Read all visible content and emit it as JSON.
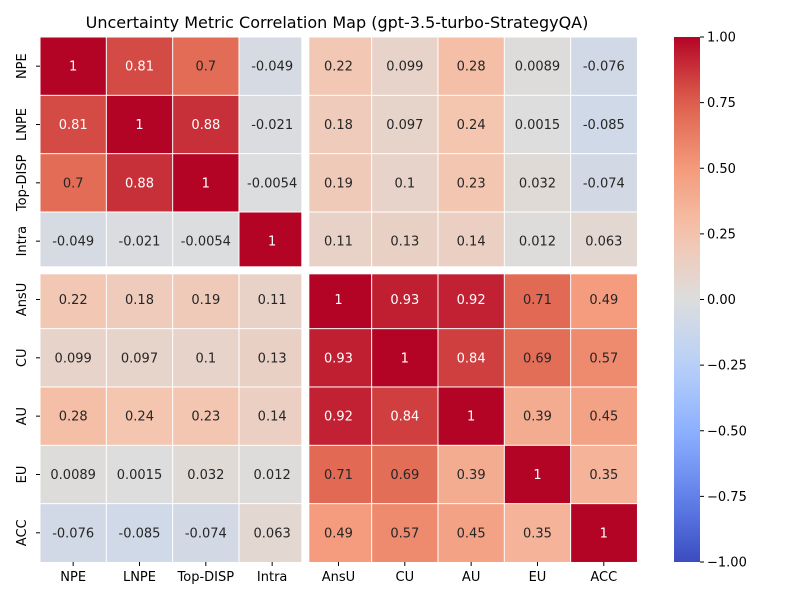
{
  "chart_data": {
    "type": "heatmap",
    "title": "Uncertainty Metric Correlation Map (gpt-3.5-turbo-StrategyQA)",
    "xlabel": "",
    "ylabel": "",
    "labels": [
      "NPE",
      "LNPE",
      "Top-DISP",
      "Intra",
      "AnsU",
      "CU",
      "AU",
      "EU",
      "ACC"
    ],
    "matrix": [
      [
        1,
        0.81,
        0.7,
        -0.049,
        0.22,
        0.099,
        0.28,
        0.0089,
        -0.076
      ],
      [
        0.81,
        1,
        0.88,
        -0.021,
        0.18,
        0.097,
        0.24,
        0.0015,
        -0.085
      ],
      [
        0.7,
        0.88,
        1,
        -0.0054,
        0.19,
        0.1,
        0.23,
        0.032,
        -0.074
      ],
      [
        -0.049,
        -0.021,
        -0.0054,
        1,
        0.11,
        0.13,
        0.14,
        0.012,
        0.063
      ],
      [
        0.22,
        0.18,
        0.19,
        0.11,
        1,
        0.93,
        0.92,
        0.71,
        0.49
      ],
      [
        0.099,
        0.097,
        0.1,
        0.13,
        0.93,
        1,
        0.84,
        0.69,
        0.57
      ],
      [
        0.28,
        0.24,
        0.23,
        0.14,
        0.92,
        0.84,
        1,
        0.39,
        0.45
      ],
      [
        0.0089,
        0.0015,
        0.032,
        0.012,
        0.71,
        0.69,
        0.39,
        1,
        0.35
      ],
      [
        -0.076,
        -0.085,
        -0.074,
        0.063,
        0.49,
        0.57,
        0.45,
        0.35,
        1
      ]
    ],
    "annotations": [
      [
        "1",
        "0.81",
        "0.7",
        "-0.049",
        "0.22",
        "0.099",
        "0.28",
        "0.0089",
        "-0.076"
      ],
      [
        "0.81",
        "1",
        "0.88",
        "-0.021",
        "0.18",
        "0.097",
        "0.24",
        "0.0015",
        "-0.085"
      ],
      [
        "0.7",
        "0.88",
        "1",
        "-0.0054",
        "0.19",
        "0.1",
        "0.23",
        "0.032",
        "-0.074"
      ],
      [
        "-0.049",
        "-0.021",
        "-0.0054",
        "1",
        "0.11",
        "0.13",
        "0.14",
        "0.012",
        "0.063"
      ],
      [
        "0.22",
        "0.18",
        "0.19",
        "0.11",
        "1",
        "0.93",
        "0.92",
        "0.71",
        "0.49"
      ],
      [
        "0.099",
        "0.097",
        "0.1",
        "0.13",
        "0.93",
        "1",
        "0.84",
        "0.69",
        "0.57"
      ],
      [
        "0.28",
        "0.24",
        "0.23",
        "0.14",
        "0.92",
        "0.84",
        "1",
        "0.39",
        "0.45"
      ],
      [
        "0.0089",
        "0.0015",
        "0.032",
        "0.012",
        "0.71",
        "0.69",
        "0.39",
        "1",
        "0.35"
      ],
      [
        "-0.076",
        "-0.085",
        "-0.074",
        "0.063",
        "0.49",
        "0.57",
        "0.45",
        "0.35",
        "1"
      ]
    ],
    "colormap": "coolwarm",
    "vmin": -1,
    "vmax": 1,
    "colorbar_ticks": [
      "1.00",
      "0.75",
      "0.50",
      "0.25",
      "0.00",
      "−0.25",
      "−0.50",
      "−0.75",
      "−1.00"
    ],
    "group_split_after": 4
  }
}
